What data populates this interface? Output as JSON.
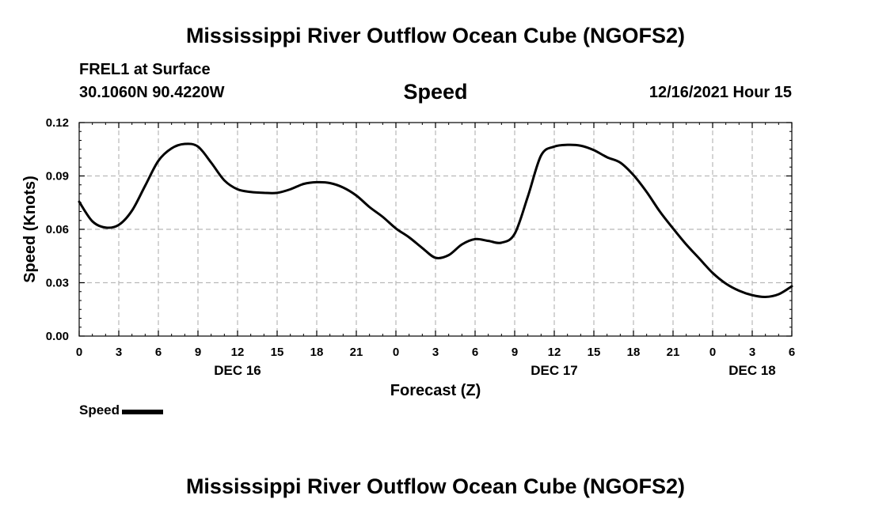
{
  "header": {
    "title": "Mississippi River Outflow Ocean Cube (NGOFS2)",
    "station": "FREL1 at Surface",
    "coords": "30.1060N  90.4220W",
    "subtitle": "Speed",
    "datetime": "12/16/2021 Hour 15"
  },
  "footer": {
    "title": "Mississippi River Outflow Ocean Cube (NGOFS2)"
  },
  "legend": {
    "label": "Speed",
    "color": "#000000"
  },
  "chart_data": {
    "type": "line",
    "title": "Speed",
    "xlabel": "Forecast (Z)",
    "ylabel": "Speed (Knots)",
    "xlim": [
      0,
      54
    ],
    "ylim": [
      0,
      0.12
    ],
    "grid": true,
    "y_ticks": [
      "0.00",
      "0.03",
      "0.06",
      "0.09",
      "0.12"
    ],
    "x_ticks": [
      {
        "hour": 0,
        "label": "0"
      },
      {
        "hour": 3,
        "label": "3"
      },
      {
        "hour": 6,
        "label": "6"
      },
      {
        "hour": 9,
        "label": "9"
      },
      {
        "hour": 12,
        "label": "12"
      },
      {
        "hour": 15,
        "label": "15"
      },
      {
        "hour": 18,
        "label": "18"
      },
      {
        "hour": 21,
        "label": "21"
      },
      {
        "hour": 24,
        "label": "0"
      },
      {
        "hour": 27,
        "label": "3"
      },
      {
        "hour": 30,
        "label": "6"
      },
      {
        "hour": 33,
        "label": "9"
      },
      {
        "hour": 36,
        "label": "12"
      },
      {
        "hour": 39,
        "label": "15"
      },
      {
        "hour": 42,
        "label": "18"
      },
      {
        "hour": 45,
        "label": "21"
      },
      {
        "hour": 48,
        "label": "0"
      },
      {
        "hour": 51,
        "label": "3"
      },
      {
        "hour": 54,
        "label": "6"
      }
    ],
    "day_labels": [
      {
        "hour": 12,
        "label": "DEC 16"
      },
      {
        "hour": 36,
        "label": "DEC 17"
      },
      {
        "hour": 51,
        "label": "DEC 18"
      }
    ],
    "series": [
      {
        "name": "Speed",
        "x": [
          0,
          1,
          2,
          3,
          4,
          5,
          6,
          7,
          8,
          9,
          10,
          11,
          12,
          13,
          14,
          15,
          16,
          17,
          18,
          19,
          20,
          21,
          22,
          23,
          24,
          25,
          26,
          27,
          28,
          29,
          30,
          31,
          32,
          33,
          34,
          35,
          36,
          37,
          38,
          39,
          40,
          41,
          42,
          43,
          44,
          45,
          46,
          47,
          48,
          49,
          50,
          51,
          52,
          53,
          54
        ],
        "values": [
          0.0755,
          0.0645,
          0.061,
          0.0625,
          0.0705,
          0.0845,
          0.0985,
          0.1055,
          0.108,
          0.1065,
          0.0975,
          0.0875,
          0.0825,
          0.081,
          0.0805,
          0.0805,
          0.0825,
          0.0855,
          0.0865,
          0.086,
          0.0835,
          0.079,
          0.0725,
          0.067,
          0.0605,
          0.0555,
          0.0495,
          0.044,
          0.0455,
          0.0515,
          0.0545,
          0.0535,
          0.0525,
          0.0575,
          0.0785,
          0.1015,
          0.1065,
          0.1075,
          0.107,
          0.1045,
          0.1005,
          0.0975,
          0.0905,
          0.081,
          0.07,
          0.0605,
          0.0515,
          0.0435,
          0.0355,
          0.0295,
          0.0255,
          0.023,
          0.022,
          0.0235,
          0.028
        ]
      }
    ]
  }
}
